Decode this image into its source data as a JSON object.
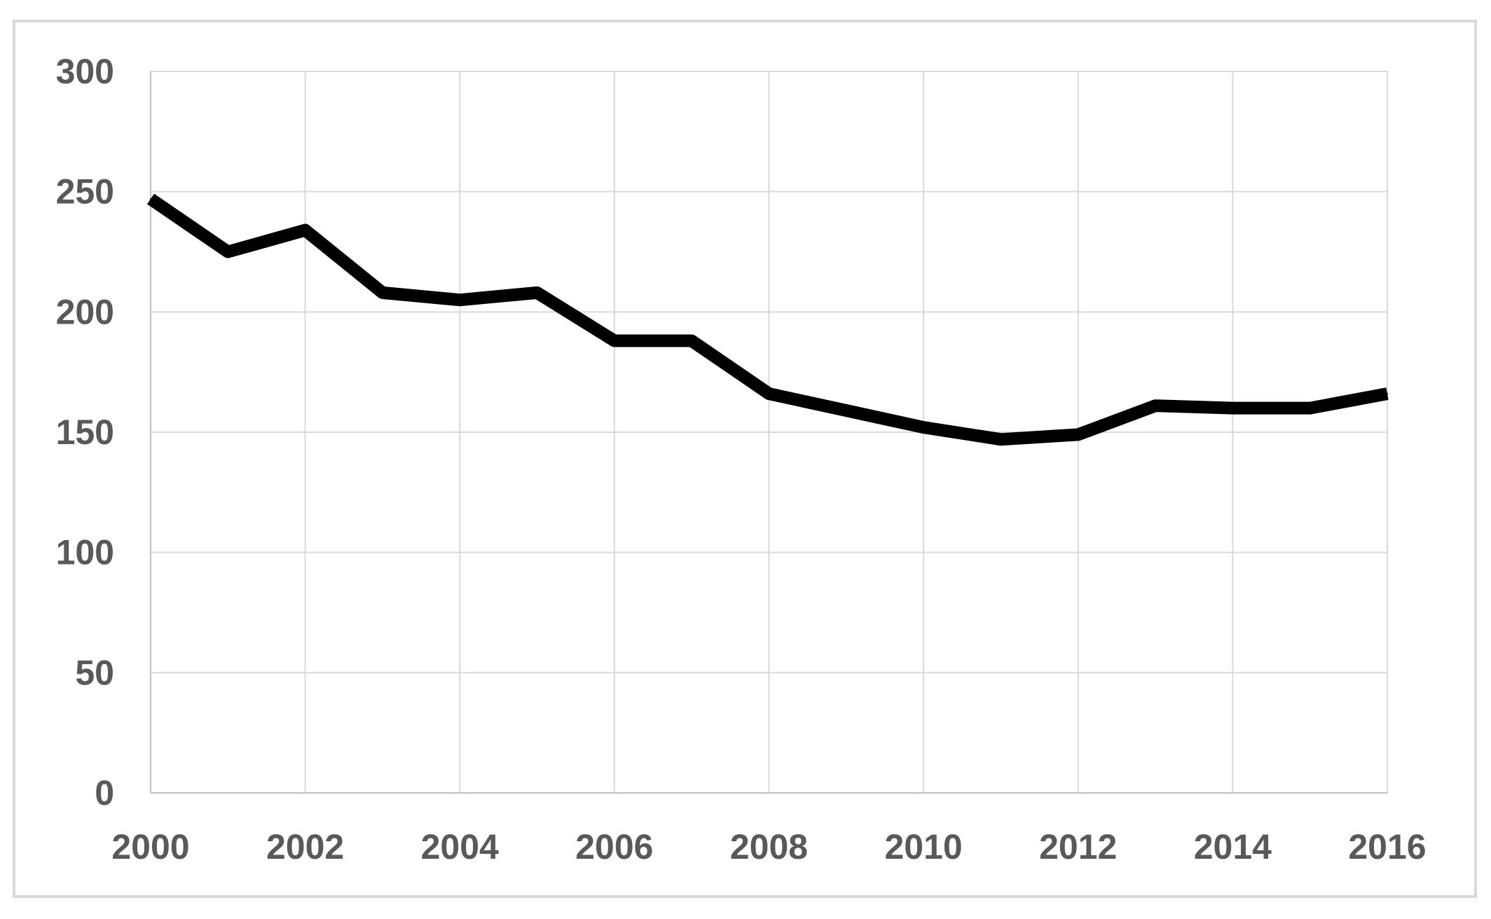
{
  "chart_data": {
    "type": "line",
    "title": "",
    "xlabel": "",
    "ylabel": "",
    "x": [
      2000,
      2001,
      2002,
      2003,
      2004,
      2005,
      2006,
      2007,
      2008,
      2009,
      2010,
      2011,
      2012,
      2013,
      2014,
      2015,
      2016
    ],
    "series": [
      {
        "values": [
          247,
          225,
          234,
          208,
          205,
          208,
          188,
          188,
          166,
          159,
          152,
          147,
          149,
          161,
          160,
          160,
          166
        ]
      }
    ],
    "xlim": [
      2000,
      2016
    ],
    "ylim": [
      0,
      300
    ],
    "x_ticks": [
      "2000",
      "2002",
      "2004",
      "2006",
      "2008",
      "2010",
      "2012",
      "2014",
      "2016"
    ],
    "y_ticks": [
      "0",
      "50",
      "100",
      "150",
      "200",
      "250",
      "300"
    ],
    "grid": true,
    "legend": "none",
    "line_color": "#000000",
    "grid_color": "#d9d9d9",
    "tick_color": "#595959"
  }
}
